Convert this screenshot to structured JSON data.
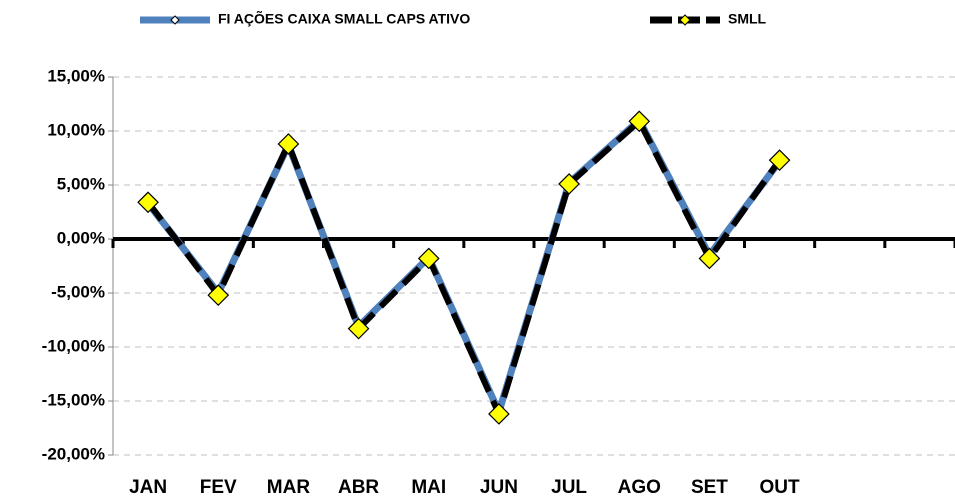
{
  "chart_data": {
    "type": "line",
    "categories": [
      "JAN",
      "FEV",
      "MAR",
      "ABR",
      "MAI",
      "JUN",
      "JUL",
      "AGO",
      "SET",
      "OUT",
      null,
      null
    ],
    "series": [
      {
        "name": "FI AÇÕES CAIXA SMALL CAPS ATIVO",
        "color": "#4f81bd",
        "values": [
          3.3,
          -5.0,
          8.7,
          -8.1,
          -1.7,
          -16.0,
          5.2,
          11.0,
          -1.5,
          7.2,
          null,
          null
        ]
      },
      {
        "name": "SMLL",
        "color": "#000000",
        "marker_color": "#ffff00",
        "values": [
          3.4,
          -5.2,
          8.8,
          -8.3,
          -1.8,
          -16.2,
          5.1,
          10.9,
          -1.8,
          7.3,
          null,
          null
        ]
      }
    ],
    "ylim": [
      -20,
      15
    ],
    "yticks": [
      {
        "value": -20,
        "label": "-20,00%"
      },
      {
        "value": -15,
        "label": "-15,00%"
      },
      {
        "value": -10,
        "label": "-10,00%"
      },
      {
        "value": -5,
        "label": "-5,00%"
      },
      {
        "value": 0,
        "label": "0,00%"
      },
      {
        "value": 5,
        "label": "5,00%"
      },
      {
        "value": 10,
        "label": "10,00%"
      },
      {
        "value": 15,
        "label": "15,00%"
      }
    ],
    "grid": true,
    "legend": "top"
  }
}
